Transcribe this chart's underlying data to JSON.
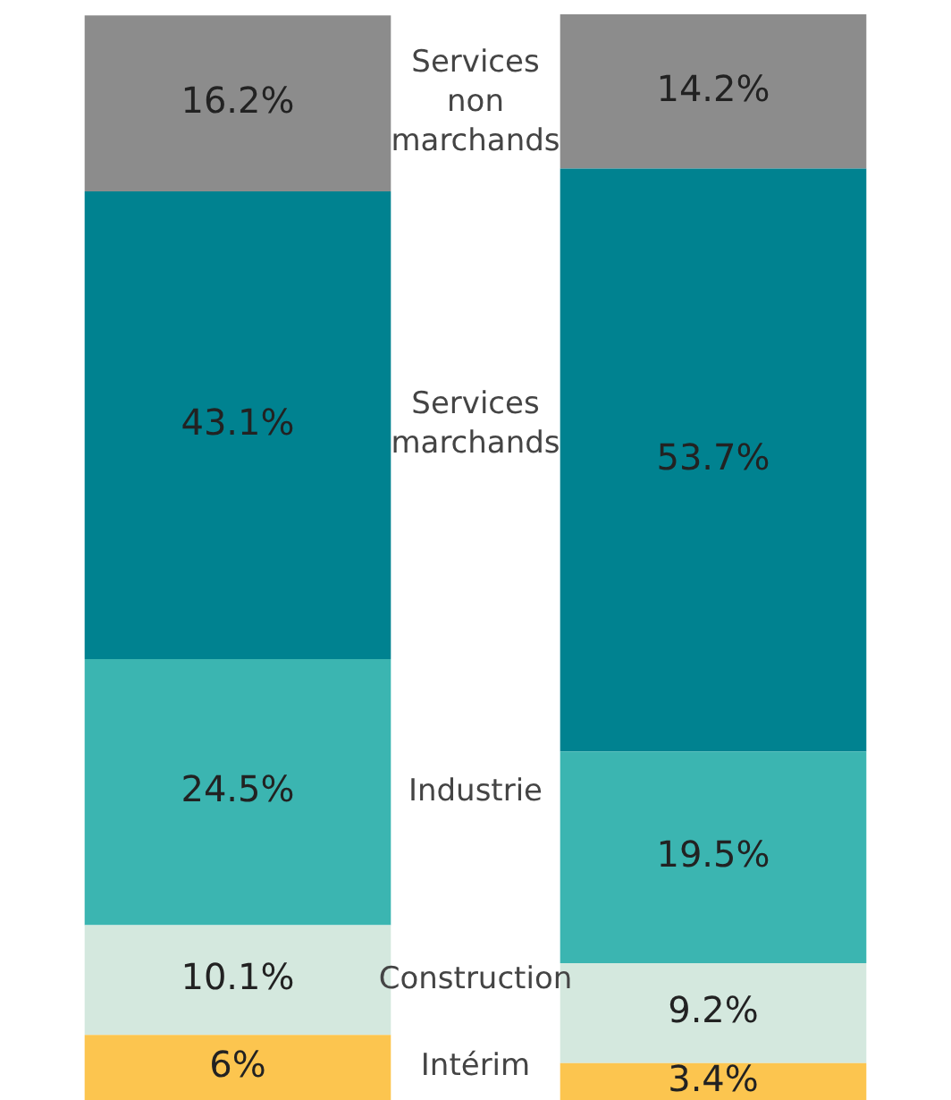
{
  "chart_data": {
    "type": "bar",
    "stacked": true,
    "categories": [
      null,
      null
    ],
    "series": [
      {
        "name": "Intérim",
        "color": "#fcc54f",
        "values": [
          6,
          3.4
        ],
        "value_labels": [
          "6%",
          "3.4%"
        ]
      },
      {
        "name": "Construction",
        "color": "#d4e8de",
        "values": [
          10.1,
          9.2
        ],
        "value_labels": [
          "10.1%",
          "9.2%"
        ]
      },
      {
        "name": "Industrie",
        "color": "#3bb5b1",
        "values": [
          24.5,
          19.5
        ],
        "value_labels": [
          "24.5%",
          "19.5%"
        ]
      },
      {
        "name": "Services marchands",
        "color": "#008290",
        "values": [
          43.1,
          53.7
        ],
        "value_labels": [
          "43.1%",
          "53.7%"
        ]
      },
      {
        "name": "Services non marchands",
        "color": "#8c8c8c",
        "values": [
          16.2,
          14.2
        ],
        "value_labels": [
          "16.2%",
          "14.2%"
        ]
      }
    ],
    "legend": false
  }
}
